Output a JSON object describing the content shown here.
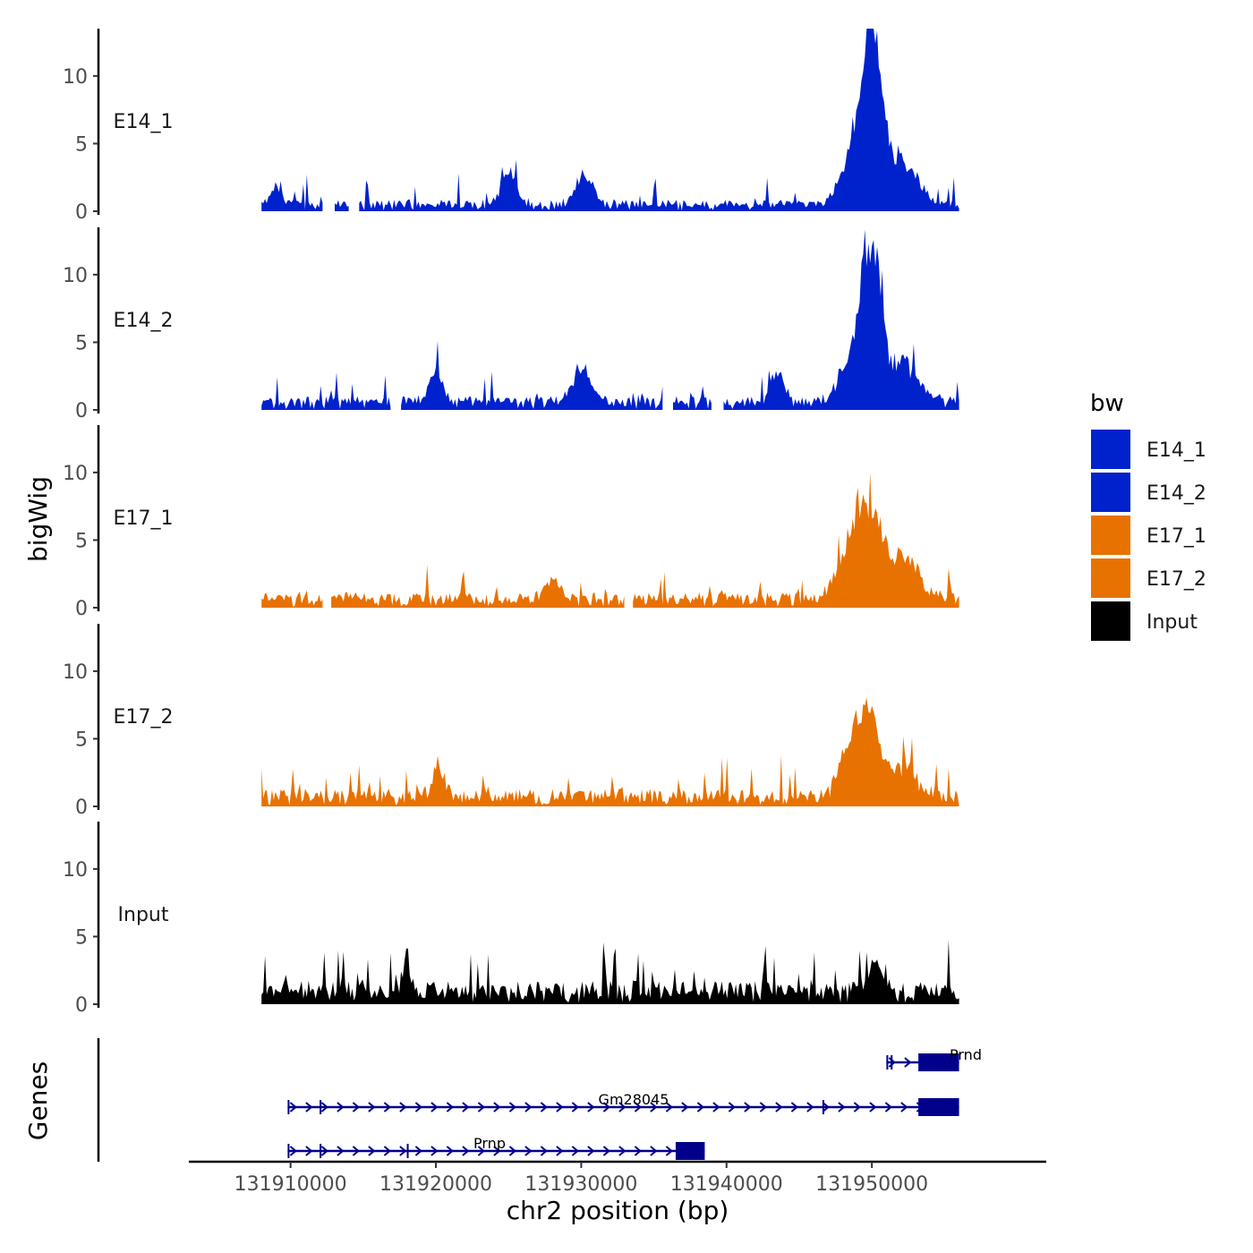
{
  "chart_data": {
    "type": "area",
    "title": "",
    "ylabel": "bigWig",
    "xlabel": "chr2 position (bp)",
    "xlim": [
      131903000,
      131962000
    ],
    "data_range": [
      131908000,
      131956000
    ],
    "ylim": [
      0,
      13.5
    ],
    "yticks": [
      0,
      5,
      10
    ],
    "xticks": [
      131910000,
      131920000,
      131930000,
      131940000,
      131950000
    ],
    "xtick_labels": [
      "131910000",
      "131920000",
      "131930000",
      "131940000",
      "131950000"
    ],
    "grid": false,
    "tracks": [
      {
        "name": "E14_1",
        "color": "#0022CC",
        "baseline": 0.6,
        "peaks": [
          {
            "center": 131950000,
            "height": 12.5,
            "width": 900
          },
          {
            "center": 131948800,
            "height": 4.0,
            "width": 1200
          },
          {
            "center": 131952000,
            "height": 3.5,
            "width": 1500
          },
          {
            "center": 131925000,
            "height": 2.5,
            "width": 800
          },
          {
            "center": 131930200,
            "height": 2.5,
            "width": 800
          },
          {
            "center": 131909000,
            "height": 1.6,
            "width": 500
          }
        ],
        "gaps": [
          [
            131912300,
            131913000
          ],
          [
            131914100,
            131914700
          ]
        ]
      },
      {
        "name": "E14_2",
        "color": "#0022CC",
        "baseline": 0.7,
        "peaks": [
          {
            "center": 131950000,
            "height": 11.5,
            "width": 900
          },
          {
            "center": 131948800,
            "height": 4.0,
            "width": 1200
          },
          {
            "center": 131952200,
            "height": 3.2,
            "width": 1500
          },
          {
            "center": 131920000,
            "height": 2.5,
            "width": 600
          },
          {
            "center": 131930000,
            "height": 2.6,
            "width": 900
          },
          {
            "center": 131943500,
            "height": 2.3,
            "width": 700
          }
        ],
        "gaps": [
          [
            131917000,
            131917500
          ],
          [
            131935700,
            131936200
          ],
          [
            131939000,
            131939700
          ]
        ]
      },
      {
        "name": "E17_1",
        "color": "#E87200",
        "baseline": 0.8,
        "peaks": [
          {
            "center": 131950000,
            "height": 6.2,
            "width": 1100
          },
          {
            "center": 131948500,
            "height": 4.3,
            "width": 1200
          },
          {
            "center": 131952200,
            "height": 3.0,
            "width": 1500
          },
          {
            "center": 131928000,
            "height": 1.8,
            "width": 700
          }
        ],
        "gaps": [
          [
            131912300,
            131912700
          ],
          [
            131933000,
            131933500
          ]
        ]
      },
      {
        "name": "E17_2",
        "color": "#E87200",
        "baseline": 0.9,
        "peaks": [
          {
            "center": 131949700,
            "height": 6.3,
            "width": 1000
          },
          {
            "center": 131948300,
            "height": 3.4,
            "width": 900
          },
          {
            "center": 131952000,
            "height": 2.5,
            "width": 1500
          },
          {
            "center": 131920200,
            "height": 2.7,
            "width": 600
          }
        ],
        "gaps": []
      },
      {
        "name": "Input",
        "color": "#000000",
        "baseline": 1.2,
        "peaks": [
          {
            "center": 131918000,
            "height": 2.7,
            "width": 400
          },
          {
            "center": 131950200,
            "height": 2.4,
            "width": 700
          }
        ],
        "gaps": []
      }
    ],
    "legend": {
      "title": "bw",
      "position": "right",
      "entries": [
        {
          "label": "E14_1",
          "color": "#0022CC"
        },
        {
          "label": "E14_2",
          "color": "#0022CC"
        },
        {
          "label": "E17_1",
          "color": "#E87200"
        },
        {
          "label": "E17_2",
          "color": "#E87200"
        },
        {
          "label": "Input",
          "color": "#000000"
        }
      ]
    },
    "genes_track": {
      "label": "Genes",
      "color": "#00008B",
      "genes": [
        {
          "name": "Prnd",
          "start": 131951000,
          "end": 131956000,
          "strand": "+",
          "exons": [
            [
              131951000,
              131951100
            ],
            [
              131951300,
              131951400
            ],
            [
              131953200,
              131956000
            ]
          ],
          "row": 0
        },
        {
          "name": "Gm28045",
          "start": 131909800,
          "end": 131956000,
          "strand": "+",
          "exons": [
            [
              131909800,
              131909900
            ],
            [
              131912000,
              131912100
            ],
            [
              131946600,
              131946700
            ],
            [
              131953200,
              131956000
            ]
          ],
          "row": 1
        },
        {
          "name": "Prnp",
          "start": 131909800,
          "end": 131938500,
          "strand": "+",
          "exons": [
            [
              131909800,
              131909900
            ],
            [
              131912000,
              131912100
            ],
            [
              131918000,
              131918100
            ],
            [
              131936500,
              131938500
            ]
          ],
          "row": 2
        }
      ]
    }
  }
}
